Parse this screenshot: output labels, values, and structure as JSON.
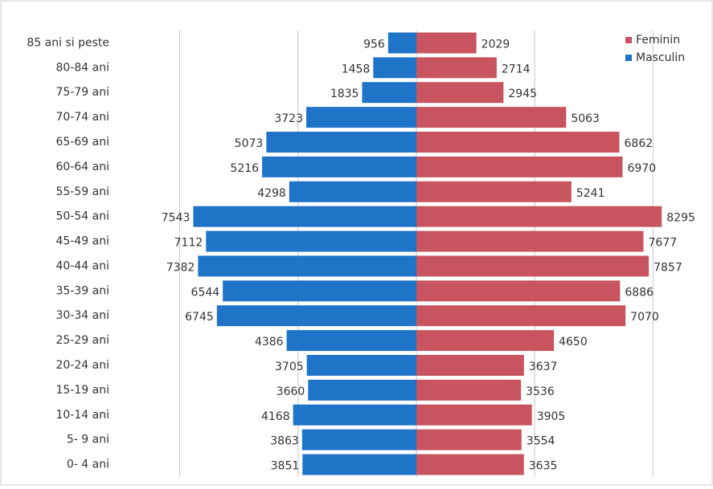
{
  "chart_data": {
    "type": "pyramid",
    "categories": [
      "85 ani si peste",
      "80-84 ani",
      "75-79 ani",
      "70-74 ani",
      "65-69 ani",
      "60-64 ani",
      "55-59 ani",
      "50-54 ani",
      "45-49 ani",
      "40-44 ani",
      "35-39 ani",
      "30-34 ani",
      "25-29 ani",
      "20-24 ani",
      "15-19 ani",
      "10-14 ani",
      "5- 9 ani",
      "0- 4 ani"
    ],
    "series": [
      {
        "name": "Feminin",
        "color": "#c8545f",
        "values": [
          2029,
          2714,
          2945,
          5063,
          6862,
          6970,
          5241,
          8295,
          7677,
          7857,
          6886,
          7070,
          4650,
          3637,
          3536,
          3905,
          3554,
          3635
        ]
      },
      {
        "name": "Masculin",
        "color": "#1f74c8",
        "values": [
          956,
          1458,
          1835,
          3723,
          5073,
          5216,
          4298,
          7543,
          7112,
          7382,
          6544,
          6745,
          4386,
          3705,
          3660,
          4168,
          3863,
          3851
        ]
      }
    ],
    "xlim": [
      -10000,
      10000
    ],
    "xticks": [
      -8000,
      -4000,
      0,
      4000,
      8000
    ],
    "grid": true,
    "legend": "top-right"
  }
}
